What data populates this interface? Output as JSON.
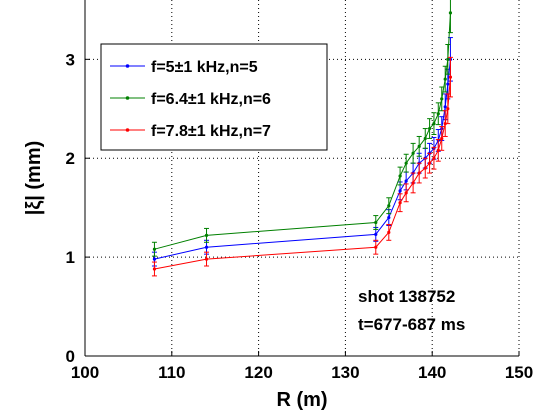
{
  "chart_data": {
    "type": "line",
    "xlabel": "R (m)",
    "ylabel": "|ξ| (mm)",
    "xlim": [
      100,
      150
    ],
    "ylim": [
      0,
      3.6
    ],
    "xticks": [
      100,
      110,
      120,
      130,
      140,
      150
    ],
    "yticks": [
      0,
      1,
      2,
      3
    ],
    "xtick_labels": [
      "100",
      "110",
      "120",
      "130",
      "140",
      "150"
    ],
    "ytick_labels": [
      "0",
      "1",
      "2",
      "3"
    ],
    "grid": true,
    "legend_position": "top-left",
    "annotations": [
      "shot 138752",
      "t=677-687 ms"
    ],
    "series": [
      {
        "name": "f=5±1 kHz,n=5",
        "color": "#0000ff",
        "x": [
          108,
          114,
          133.5,
          135,
          136.3,
          137,
          137.8,
          138.5,
          139.2,
          139.7,
          140.2,
          140.7,
          141.1,
          141.5,
          141.8,
          142.1
        ],
        "y": [
          0.98,
          1.1,
          1.23,
          1.4,
          1.67,
          1.77,
          1.85,
          1.95,
          2.0,
          2.05,
          2.1,
          2.18,
          2.3,
          2.52,
          2.75,
          3.0
        ],
        "err": [
          0.07,
          0.07,
          0.07,
          0.08,
          0.09,
          0.09,
          0.1,
          0.1,
          0.1,
          0.1,
          0.11,
          0.11,
          0.12,
          0.13,
          0.15,
          0.22
        ]
      },
      {
        "name": "f=6.4±1 kHz,n=6",
        "color": "#008000",
        "x": [
          108,
          114,
          133.5,
          135,
          136.3,
          137,
          137.8,
          138.5,
          139.2,
          139.7,
          140.2,
          140.7,
          141.1,
          141.5,
          141.8,
          142.1
        ],
        "y": [
          1.08,
          1.22,
          1.35,
          1.52,
          1.82,
          1.95,
          2.05,
          2.12,
          2.2,
          2.3,
          2.35,
          2.45,
          2.6,
          2.8,
          3.0,
          3.47
        ],
        "err": [
          0.07,
          0.07,
          0.07,
          0.08,
          0.09,
          0.09,
          0.1,
          0.1,
          0.1,
          0.1,
          0.11,
          0.11,
          0.12,
          0.13,
          0.15,
          0.2
        ]
      },
      {
        "name": "f=7.8±1 kHz,n=7",
        "color": "#ff0000",
        "x": [
          108,
          114,
          133.5,
          135,
          136.3,
          137,
          137.8,
          138.5,
          139.2,
          139.7,
          140.2,
          140.7,
          141.1,
          141.5,
          141.8,
          142.1
        ],
        "y": [
          0.88,
          0.98,
          1.1,
          1.25,
          1.55,
          1.65,
          1.75,
          1.85,
          1.9,
          1.95,
          2.0,
          2.08,
          2.2,
          2.35,
          2.5,
          2.82
        ],
        "err": [
          0.07,
          0.07,
          0.07,
          0.08,
          0.09,
          0.09,
          0.1,
          0.1,
          0.1,
          0.1,
          0.11,
          0.11,
          0.12,
          0.13,
          0.15,
          0.2
        ]
      }
    ]
  }
}
